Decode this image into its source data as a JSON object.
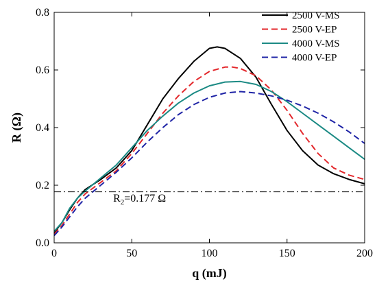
{
  "chart_data": {
    "type": "line",
    "xlabel": "q (mJ)",
    "ylabel": "R (Ω)",
    "xlim": [
      0,
      200
    ],
    "ylim": [
      0,
      0.8
    ],
    "xticks": [
      "0",
      "50",
      "100",
      "150",
      "200"
    ],
    "yticks": [
      "0.0",
      "0.2",
      "0.4",
      "0.6",
      "0.8"
    ],
    "grid": false,
    "legend_position": "top-right",
    "series": [
      {
        "name": "2500 V-MS",
        "color": "#000000",
        "dash": "solid",
        "x": [
          0,
          5,
          10,
          15,
          20,
          30,
          40,
          50,
          60,
          70,
          80,
          90,
          100,
          105,
          110,
          120,
          130,
          140,
          150,
          160,
          170,
          180,
          190,
          200
        ],
        "y": [
          0.035,
          0.07,
          0.115,
          0.155,
          0.185,
          0.22,
          0.26,
          0.32,
          0.41,
          0.5,
          0.57,
          0.63,
          0.675,
          0.68,
          0.675,
          0.64,
          0.575,
          0.48,
          0.39,
          0.32,
          0.27,
          0.24,
          0.22,
          0.205
        ]
      },
      {
        "name": "2500 V-EP",
        "color": "#e3272b",
        "dash": "dashed",
        "x": [
          0,
          5,
          10,
          15,
          20,
          30,
          40,
          50,
          60,
          70,
          80,
          90,
          100,
          110,
          115,
          120,
          130,
          140,
          150,
          160,
          170,
          180,
          190,
          200
        ],
        "y": [
          0.03,
          0.06,
          0.1,
          0.14,
          0.17,
          0.21,
          0.25,
          0.31,
          0.38,
          0.45,
          0.51,
          0.56,
          0.595,
          0.61,
          0.61,
          0.605,
          0.58,
          0.53,
          0.46,
          0.38,
          0.31,
          0.26,
          0.235,
          0.22
        ]
      },
      {
        "name": "4000 V-MS",
        "color": "#1b8a84",
        "dash": "solid",
        "x": [
          0,
          5,
          10,
          15,
          20,
          30,
          40,
          50,
          60,
          70,
          80,
          90,
          100,
          110,
          120,
          130,
          140,
          150,
          160,
          170,
          180,
          190,
          200
        ],
        "y": [
          0.04,
          0.07,
          0.12,
          0.155,
          0.18,
          0.225,
          0.27,
          0.33,
          0.39,
          0.44,
          0.485,
          0.52,
          0.545,
          0.558,
          0.56,
          0.55,
          0.525,
          0.49,
          0.45,
          0.41,
          0.37,
          0.33,
          0.29
        ]
      },
      {
        "name": "4000 V-EP",
        "color": "#1f24a6",
        "dash": "dashed",
        "x": [
          0,
          5,
          10,
          15,
          20,
          30,
          40,
          50,
          60,
          70,
          80,
          90,
          100,
          110,
          120,
          130,
          140,
          150,
          160,
          170,
          180,
          190,
          200
        ],
        "y": [
          0.025,
          0.055,
          0.09,
          0.125,
          0.155,
          0.2,
          0.245,
          0.295,
          0.35,
          0.4,
          0.445,
          0.48,
          0.505,
          0.52,
          0.525,
          0.52,
          0.51,
          0.495,
          0.475,
          0.45,
          0.42,
          0.385,
          0.345
        ]
      }
    ],
    "reference_line": {
      "y": 0.177,
      "color": "#000000",
      "dash": "dash-dot",
      "label_main": "R",
      "label_sub": "2",
      "label_rest": "=0.177 Ω",
      "label_x": 38,
      "label_y": 0.155
    }
  }
}
